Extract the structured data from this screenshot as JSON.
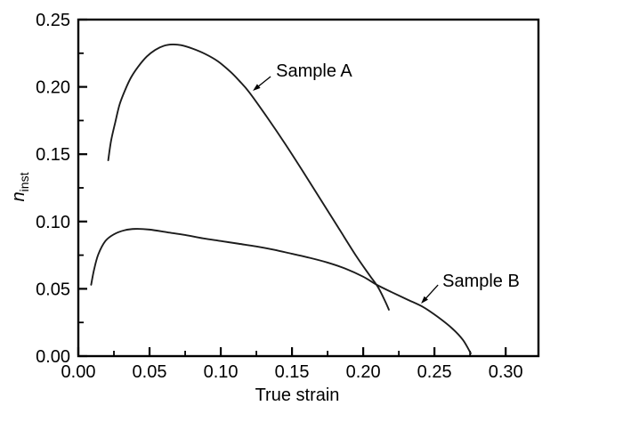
{
  "chart_data": {
    "type": "line",
    "title": "",
    "xlabel": "True strain",
    "ylabel": {
      "main": "n",
      "sub": "inst"
    },
    "xlim": [
      0,
      0.323
    ],
    "ylim": [
      0,
      0.25
    ],
    "grid": false,
    "legend": "none",
    "x_major_ticks": [
      0,
      0.05,
      0.1,
      0.15,
      0.2,
      0.25,
      0.3
    ],
    "x_tick_labels": [
      "0.00",
      "0.05",
      "0.10",
      "0.15",
      "0.20",
      "0.25",
      "0.30"
    ],
    "x_minor_ticks": [
      0.025,
      0.075,
      0.125,
      0.175,
      0.225,
      0.275
    ],
    "y_major_ticks": [
      0,
      0.05,
      0.1,
      0.15,
      0.2,
      0.25
    ],
    "y_tick_labels": [
      "0.00",
      "0.05",
      "0.10",
      "0.15",
      "0.20",
      "0.25"
    ],
    "y_minor_ticks": [
      0.025,
      0.075,
      0.125,
      0.175,
      0.225
    ],
    "colors": {
      "axis": "#000000",
      "curve": "#1c1c1c",
      "background": "#ffffff"
    },
    "series": [
      {
        "name": "Sample A",
        "color": "#1c1c1c",
        "points": [
          [
            0.021,
            0.1455
          ],
          [
            0.023,
            0.16
          ],
          [
            0.026,
            0.174
          ],
          [
            0.029,
            0.187
          ],
          [
            0.033,
            0.198
          ],
          [
            0.037,
            0.207
          ],
          [
            0.042,
            0.215
          ],
          [
            0.048,
            0.2225
          ],
          [
            0.054,
            0.2275
          ],
          [
            0.06,
            0.2305
          ],
          [
            0.066,
            0.2315
          ],
          [
            0.072,
            0.231
          ],
          [
            0.08,
            0.2285
          ],
          [
            0.089,
            0.2245
          ],
          [
            0.098,
            0.219
          ],
          [
            0.107,
            0.211
          ],
          [
            0.113,
            0.2045
          ],
          [
            0.12,
            0.196
          ],
          [
            0.1325,
            0.1775
          ],
          [
            0.145,
            0.158
          ],
          [
            0.1575,
            0.1375
          ],
          [
            0.17,
            0.1165
          ],
          [
            0.1825,
            0.0955
          ],
          [
            0.195,
            0.0745
          ],
          [
            0.2045,
            0.06
          ],
          [
            0.2105,
            0.051
          ],
          [
            0.2155,
            0.0405
          ],
          [
            0.218,
            0.0345
          ]
        ]
      },
      {
        "name": "Sample B",
        "color": "#1c1c1c",
        "points": [
          [
            0.009,
            0.053
          ],
          [
            0.011,
            0.064
          ],
          [
            0.014,
            0.0755
          ],
          [
            0.019,
            0.0855
          ],
          [
            0.025,
            0.0905
          ],
          [
            0.0325,
            0.0935
          ],
          [
            0.04,
            0.0945
          ],
          [
            0.05,
            0.094
          ],
          [
            0.0625,
            0.092
          ],
          [
            0.075,
            0.09
          ],
          [
            0.0875,
            0.0875
          ],
          [
            0.1,
            0.0855
          ],
          [
            0.1125,
            0.0835
          ],
          [
            0.125,
            0.0815
          ],
          [
            0.1375,
            0.079
          ],
          [
            0.15,
            0.076
          ],
          [
            0.1625,
            0.073
          ],
          [
            0.175,
            0.0695
          ],
          [
            0.1875,
            0.065
          ],
          [
            0.2,
            0.059
          ],
          [
            0.2095,
            0.053
          ],
          [
            0.22,
            0.0475
          ],
          [
            0.231,
            0.042
          ],
          [
            0.242,
            0.0365
          ],
          [
            0.2525,
            0.029
          ],
          [
            0.2625,
            0.0205
          ],
          [
            0.27,
            0.012
          ],
          [
            0.2755,
            0.002
          ]
        ]
      }
    ],
    "annotations": [
      {
        "label": "Sample A",
        "text_xy": [
          0.1388,
          0.2123
        ],
        "arrow_from": [
          0.135,
          0.2077
        ],
        "arrow_to": [
          0.1225,
          0.1971
        ]
      },
      {
        "label": "Sample B",
        "text_xy": [
          0.2556,
          0.0562
        ],
        "arrow_from": [
          0.2525,
          0.0529
        ],
        "arrow_to": [
          0.2406,
          0.039
        ]
      }
    ]
  }
}
